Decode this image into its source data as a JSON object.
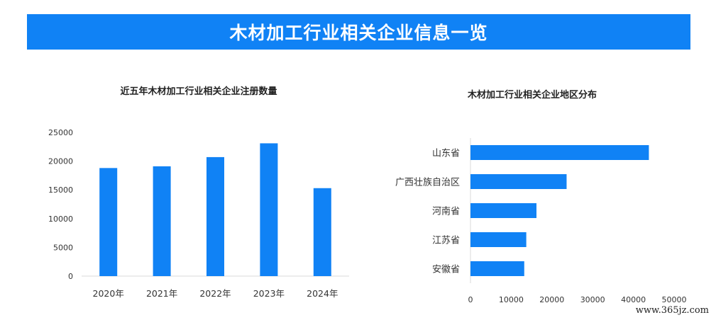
{
  "header": {
    "title": "木材加工行业相关企业信息一览"
  },
  "colors": {
    "accent": "#1082f5",
    "bar": "#1082f5"
  },
  "chart_data": [
    {
      "type": "bar",
      "title": "近五年木材加工行业相关企业注册数量",
      "categories": [
        "2020年",
        "2021年",
        "2022年",
        "2023年",
        "2024年"
      ],
      "values": [
        18800,
        19100,
        20700,
        23100,
        15300
      ],
      "ylim": [
        0,
        25000
      ],
      "yticks": [
        0,
        5000,
        10000,
        15000,
        20000,
        25000
      ],
      "grid": false
    },
    {
      "type": "bar",
      "orientation": "horizontal",
      "title": "木材加工行业相关企业地区分布",
      "categories": [
        "山东省",
        "广西壮族自治区",
        "河南省",
        "江苏省",
        "安徽省"
      ],
      "values": [
        43800,
        23600,
        16200,
        13700,
        13200
      ],
      "xlim": [
        0,
        50000
      ],
      "xticks": [
        0,
        10000,
        20000,
        30000,
        40000,
        50000
      ],
      "grid": false
    }
  ],
  "watermark": "www.365jz.com"
}
